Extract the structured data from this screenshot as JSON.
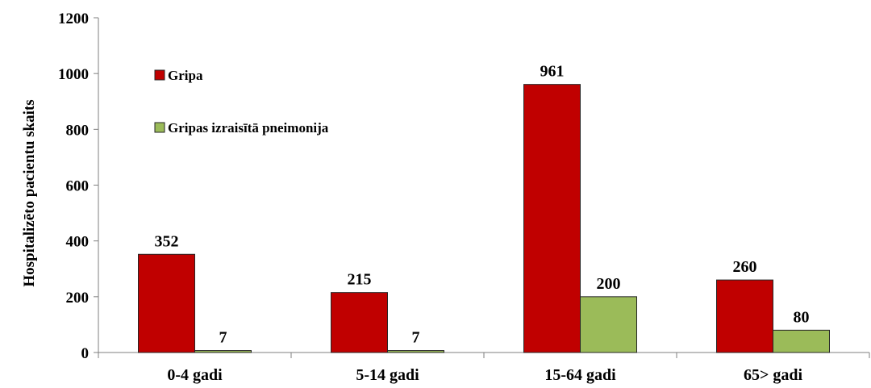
{
  "chart_data": {
    "type": "bar",
    "title": "",
    "xlabel": "",
    "ylabel": "Hospitalizēto pacientu skaits",
    "categories": [
      "0-4 gadi",
      "5-14 gadi",
      "15-64 gadi",
      "65> gadi"
    ],
    "series": [
      {
        "name": "Gripa",
        "values": [
          352,
          215,
          961,
          260
        ],
        "color": "#c00000"
      },
      {
        "name": "Gripas izraisītā pneimonija",
        "values": [
          7,
          7,
          200,
          80
        ],
        "color": "#9bbb59"
      }
    ],
    "ylim": [
      0,
      1200
    ],
    "yticks": [
      0,
      200,
      400,
      600,
      800,
      1000,
      1200
    ],
    "legend_position": "top-left",
    "grid": false,
    "data_labels": true
  }
}
